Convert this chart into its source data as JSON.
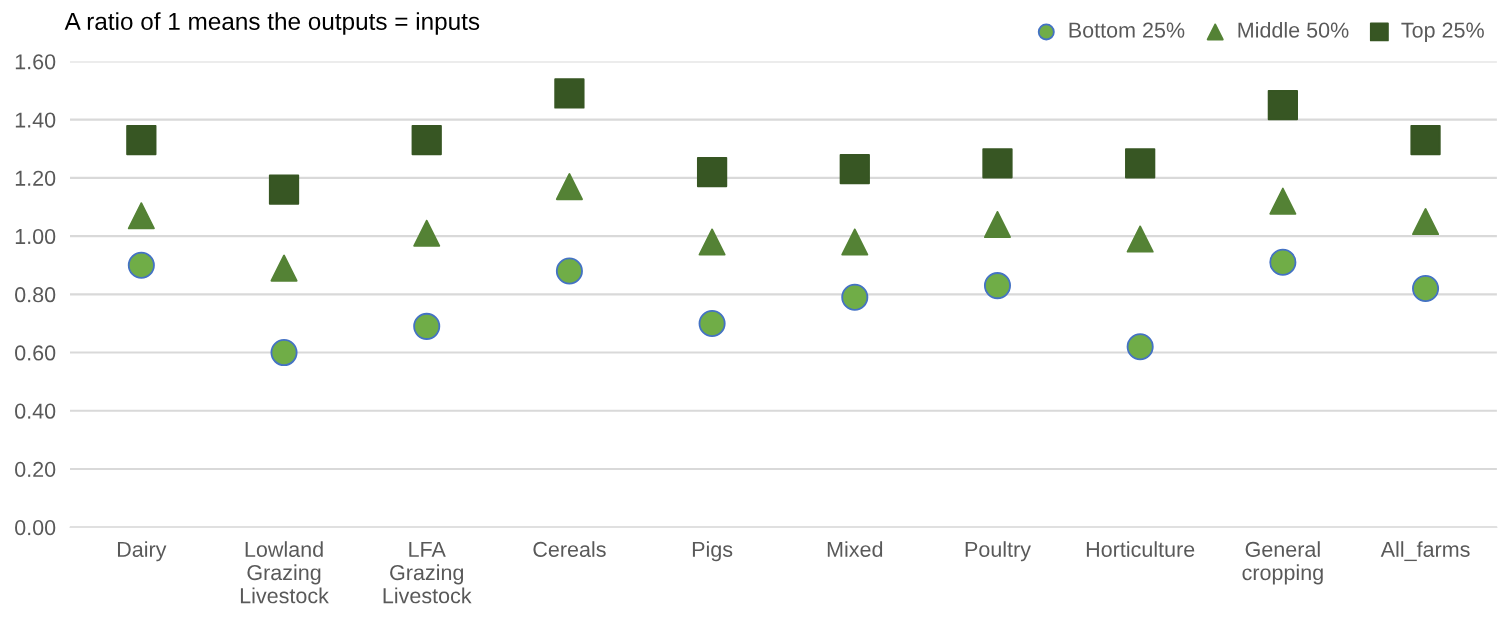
{
  "chart_data": {
    "type": "scatter",
    "title": "A ratio of 1 means the outputs = inputs",
    "categories": [
      "Dairy",
      "Lowland\nGrazing\nLivestock",
      "LFA\nGrazing\nLivestock",
      "Cereals",
      "Pigs",
      "Mixed",
      "Poultry",
      "Horticulture",
      "General\ncropping",
      "All_farms"
    ],
    "series": [
      {
        "name": "Bottom 25%",
        "color": "#70ad47",
        "marker": "circle",
        "values": [
          0.9,
          0.6,
          0.69,
          0.88,
          0.7,
          0.79,
          0.83,
          0.62,
          0.91,
          0.82
        ]
      },
      {
        "name": "Middle 50%",
        "color": "#548235",
        "marker": "triangle",
        "values": [
          1.07,
          0.89,
          1.01,
          1.17,
          0.98,
          0.98,
          1.04,
          0.99,
          1.12,
          1.05
        ]
      },
      {
        "name": "Top 25%",
        "color": "#375623",
        "marker": "square",
        "values": [
          1.33,
          1.16,
          1.33,
          1.49,
          1.22,
          1.23,
          1.25,
          1.25,
          1.45,
          1.33
        ]
      }
    ],
    "ylim": [
      0,
      1.6
    ],
    "yticks": [
      {
        "value": 0,
        "label": "0.00"
      },
      {
        "value": 0.2,
        "label": "0.20"
      },
      {
        "value": 0.4,
        "label": "0.40"
      },
      {
        "value": 0.6,
        "label": "0.60"
      },
      {
        "value": 0.8,
        "label": "0.80"
      },
      {
        "value": 1.0,
        "label": "1.00"
      },
      {
        "value": 1.2,
        "label": "1.20"
      },
      {
        "value": 1.4,
        "label": "1.40"
      },
      {
        "value": 1.6,
        "label": "1.60"
      }
    ],
    "grid": "y",
    "legend": "top right"
  }
}
